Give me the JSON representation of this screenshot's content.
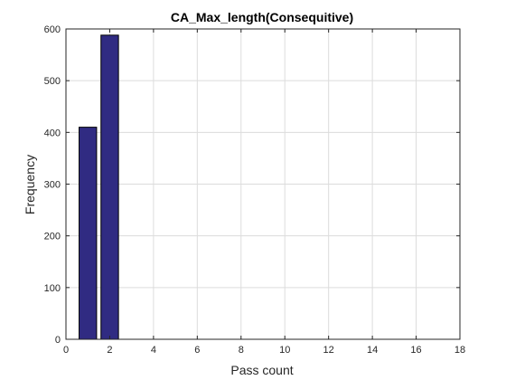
{
  "colors": {
    "bar_fill": "#302b82",
    "bar_edge": "#000000",
    "grid": "#dcdcdc",
    "axis": "#262626"
  },
  "chart_data": {
    "type": "bar",
    "title": "CA_Max_length(Consequitive)",
    "xlabel": "Pass count",
    "ylabel": "Frequency",
    "x": [
      1,
      2
    ],
    "values": [
      410,
      588
    ],
    "bar_width": 0.8,
    "xlim": [
      0,
      18
    ],
    "ylim": [
      0,
      600
    ],
    "xticks": [
      0,
      2,
      4,
      6,
      8,
      10,
      12,
      14,
      16,
      18
    ],
    "yticks": [
      0,
      100,
      200,
      300,
      400,
      500,
      600
    ],
    "grid": true
  }
}
